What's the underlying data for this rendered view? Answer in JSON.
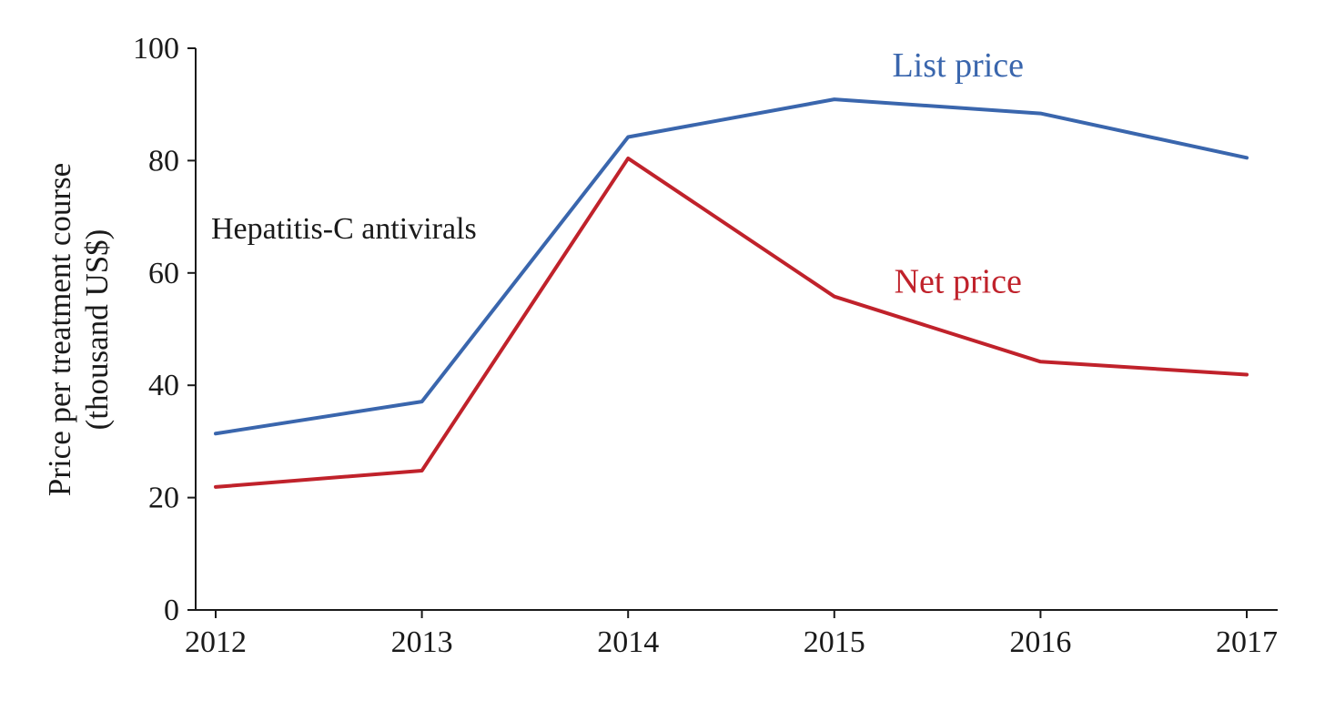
{
  "chart_data": {
    "type": "line",
    "title": "",
    "annotation": "Hepatitis-C antivirals",
    "xlabel": "",
    "ylabel_line1": "Price per treatment course",
    "ylabel_line2": "(thousand US$)",
    "x": [
      2012,
      2013,
      2014,
      2015,
      2016,
      2017
    ],
    "x_tick_labels": [
      "2012",
      "2013",
      "2014",
      "2015",
      "2016",
      "2017"
    ],
    "y_ticks": [
      0,
      20,
      40,
      60,
      80,
      100
    ],
    "y_tick_labels": [
      "0",
      "20",
      "40",
      "60",
      "80",
      "100"
    ],
    "ylim": [
      0,
      100
    ],
    "grid": false,
    "series": [
      {
        "name": "List price",
        "color": "#3a66ad",
        "values": [
          31.4,
          37.1,
          84.2,
          90.9,
          88.4,
          80.5
        ],
        "label_near": {
          "x": 2015.6,
          "y": 95
        }
      },
      {
        "name": "Net price",
        "color": "#c0222b",
        "values": [
          21.9,
          24.8,
          80.4,
          55.8,
          44.2,
          41.9
        ],
        "label_near": {
          "x": 2015.6,
          "y": 56.5
        }
      }
    ]
  }
}
